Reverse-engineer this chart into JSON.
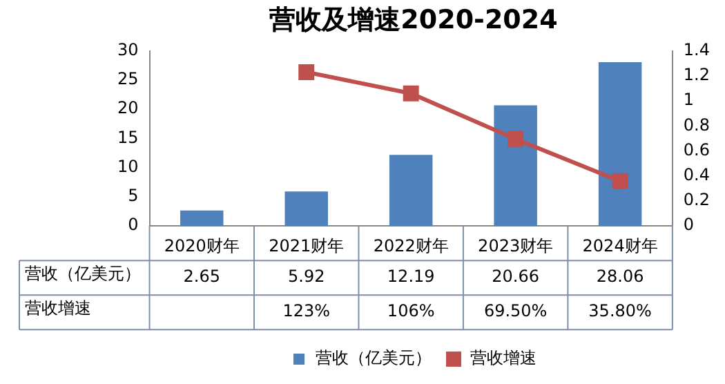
{
  "chart_data": {
    "type": "bar",
    "title": "营收及增速2020-2024",
    "categories": [
      "2020财年",
      "2021财年",
      "2022财年",
      "2023财年",
      "2024财年"
    ],
    "series": [
      {
        "name": "营收（亿美元）",
        "color": "#4f81bd",
        "values": [
          2.65,
          5.92,
          12.19,
          20.66,
          28.06
        ],
        "value_labels": [
          "2.65",
          "5.92",
          "12.19",
          "20.66",
          "28.06"
        ]
      },
      {
        "name": "营收增速",
        "type": "line",
        "axis": "y2",
        "color": "#c0504d",
        "marker": "square",
        "values": [
          null,
          1.23,
          1.06,
          0.695,
          0.358
        ],
        "value_labels": [
          null,
          "123%",
          "106%",
          "69.50%",
          "35.80%"
        ]
      }
    ],
    "ylim": [
      0,
      30
    ],
    "yticks": [
      0,
      5,
      10,
      15,
      20,
      25,
      30
    ],
    "y2lim": [
      0,
      1.4
    ],
    "y2ticks": [
      0,
      0.2,
      0.4,
      0.6,
      0.8,
      1,
      1.2,
      1.4
    ],
    "grid": false,
    "legend": "bottom"
  }
}
